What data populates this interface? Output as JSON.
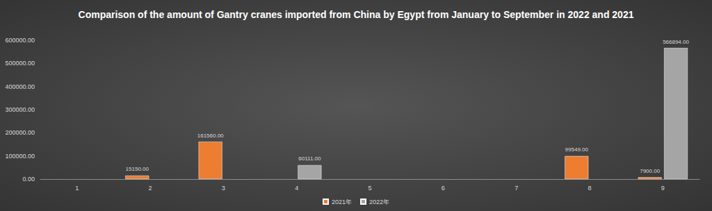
{
  "chart_data": {
    "type": "bar",
    "title": "Comparison of the amount of Gantry cranes imported from China by Egypt from January to September in 2022 and 2021",
    "categories": [
      "1",
      "2",
      "3",
      "4",
      "5",
      "6",
      "7",
      "8",
      "9"
    ],
    "series": [
      {
        "name": "2021年",
        "color": "#ed7d31",
        "values": [
          null,
          15150,
          161560,
          null,
          null,
          null,
          null,
          99549,
          7900
        ],
        "value_labels": [
          null,
          "15150.00",
          "161560.00",
          null,
          null,
          null,
          null,
          "99549.00",
          "7900.00"
        ]
      },
      {
        "name": "2022年",
        "color": "#a5a5a5",
        "values": [
          null,
          null,
          null,
          60111,
          null,
          null,
          null,
          null,
          566894
        ],
        "value_labels": [
          null,
          null,
          null,
          "60111.00",
          null,
          null,
          null,
          null,
          "566894.00"
        ]
      }
    ],
    "ylim": [
      0,
      600000
    ],
    "yticks": [
      {
        "value": 0,
        "label": "0.00"
      },
      {
        "value": 100000,
        "label": "100000.00"
      },
      {
        "value": 200000,
        "label": "200000.00"
      },
      {
        "value": 300000,
        "label": "300000.00"
      },
      {
        "value": 400000,
        "label": "400000.00"
      },
      {
        "value": 500000,
        "label": "500000.00"
      },
      {
        "value": 600000,
        "label": "600000.00"
      }
    ],
    "grid": false,
    "legend": "bottom",
    "data_labels": true
  }
}
